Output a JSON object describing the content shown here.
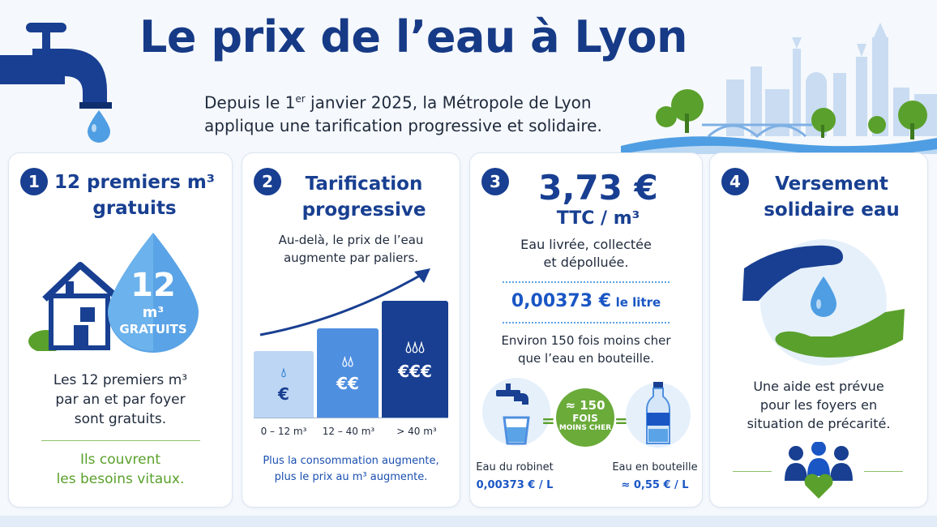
{
  "header": {
    "title": "Le prix de l’eau à Lyon",
    "subtitle_part1": "Depuis le 1",
    "subtitle_sup": "er",
    "subtitle_part2": " janvier 2025, la Métropole de Lyon",
    "subtitle_line2": "applique une tarification progressive et solidaire."
  },
  "cards": [
    {
      "number": "1",
      "title_line1": "12 premiers m³",
      "title_line2": "gratuits",
      "drop_number": "12",
      "drop_unit": "m³",
      "drop_label": "GRATUITS",
      "text_line1": "Les 12 premiers m³",
      "text_line2": "par an et par foyer",
      "text_line3": "sont gratuits.",
      "highlight_line1": "Ils couvrent",
      "highlight_line2": "les besoins vitaux."
    },
    {
      "number": "2",
      "title_line1": "Tarification",
      "title_line2": "progressive",
      "text_line1": "Au-delà, le prix de l’eau",
      "text_line2": "augmente par paliers.",
      "bars": [
        {
          "symbol": "€",
          "tick": "0 – 12 m³",
          "level": 1
        },
        {
          "symbol": "€€",
          "tick": "12 – 40 m³",
          "level": 2
        },
        {
          "symbol": "€€€",
          "tick": "> 40 m³",
          "level": 3
        }
      ],
      "footer_line1": "Plus la consommation augmente,",
      "footer_line2": "plus le prix au m³ augmente."
    },
    {
      "number": "3",
      "price": "3,73 €",
      "price_unit": "TTC / m³",
      "text_line1": "Eau livrée, collectée",
      "text_line2": "et dépolluée.",
      "litre_price": "0,00373 €",
      "litre_unit": "le litre",
      "compare_line1": "Environ 150 fois moins cher",
      "compare_line2": "que l’eau en bouteille.",
      "badge_line1": "≈ 150",
      "badge_line2": "FOIS",
      "badge_line3": "MOINS CHER",
      "equals": "=",
      "tap_label": "Eau du robinet",
      "tap_price": "0,00373 € / L",
      "bottle_label": "Eau en bouteille",
      "bottle_price": "≈ 0,55 € / L"
    },
    {
      "number": "4",
      "title_line1": "Versement",
      "title_line2": "solidaire eau",
      "text_line1": "Une aide est prévue",
      "text_line2": "pour les foyers en",
      "text_line3": "situation de précarité."
    }
  ],
  "colors": {
    "navy": "#183f91",
    "blue": "#1a56c4",
    "light_blue": "#5aa3e6",
    "green": "#5aa02c"
  },
  "icons": [
    "faucet-icon",
    "water-drop-icon",
    "city-skyline-icon",
    "house-icon",
    "trend-arrow-icon",
    "glass-icon",
    "bottle-icon",
    "hands-icon",
    "family-icon",
    "heart-icon"
  ]
}
